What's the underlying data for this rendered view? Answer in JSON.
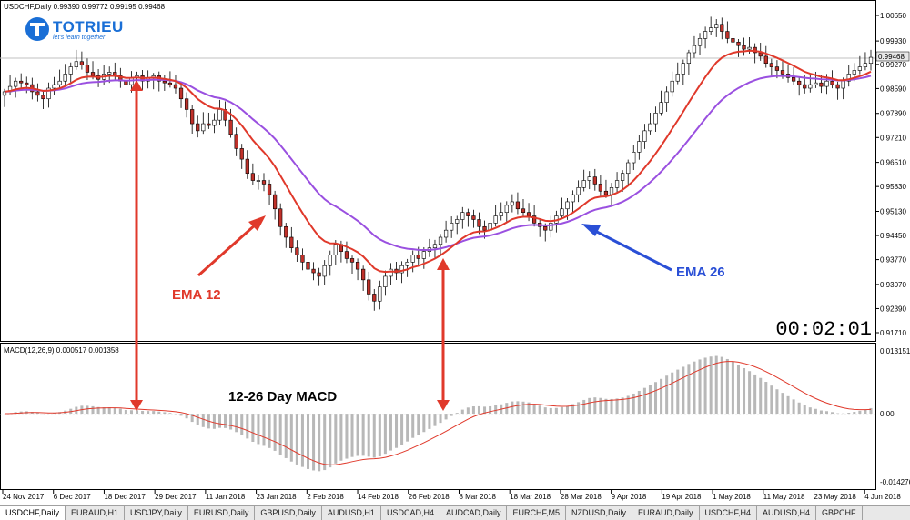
{
  "window": {
    "symbol_header": "USDCHF,Daily  0.99390 0.99772 0.99195 0.99468",
    "macd_header": "MACD(12,26,9) 0.000517 0.001358",
    "timer": "00:02:01"
  },
  "logo": {
    "name": "TOTRIEU",
    "tagline": "let's learn together"
  },
  "annotations": {
    "ema12": "EMA 12",
    "ema26": "EMA 26",
    "macd": "12-26 Day MACD"
  },
  "colors": {
    "ema12": "#e0392b",
    "ema26": "#9a50e0",
    "bull": "#ffffff",
    "bear": "#c0312a",
    "macd_hist": "#b8b8b8",
    "arrow_red": "#e0392b",
    "arrow_blue": "#2a4fd6"
  },
  "tabs": [
    "USDCHF,Daily",
    "EURAUD,H1",
    "USDJPY,Daily",
    "EURUSD,Daily",
    "GBPUSD,Daily",
    "AUDUSD,H1",
    "USDCAD,H4",
    "AUDCAD,Daily",
    "EURCHF,M5",
    "NZDUSD,Daily",
    "EURAUD,Daily",
    "USDCHF,H4",
    "AUDUSD,H4",
    "GBPCHF"
  ],
  "chart_data": {
    "type": "candlestick",
    "symbol": "USDCHF",
    "price_axis": [
      "1.00650",
      "0.99930",
      "0.99270",
      "0.98590",
      "0.97890",
      "0.97210",
      "0.96510",
      "0.95830",
      "0.95130",
      "0.94450",
      "0.93770",
      "0.93070",
      "0.92390",
      "0.91710"
    ],
    "price_range": [
      0.9171,
      1.0065
    ],
    "current_price": "0.99468",
    "macd_axis": [
      "0.013151",
      "0.00",
      "-0.014276"
    ],
    "macd_range": [
      -0.014276,
      0.013151
    ],
    "date_labels": [
      "24 Nov 2017",
      "6 Dec 2017",
      "18 Dec 2017",
      "29 Dec 2017",
      "11 Jan 2018",
      "23 Jan 2018",
      "2 Feb 2018",
      "14 Feb 2018",
      "26 Feb 2018",
      "8 Mar 2018",
      "18 Mar 2018",
      "28 Mar 2018",
      "9 Apr 2018",
      "19 Apr 2018",
      "1 May 2018",
      "11 May 2018",
      "23 May 2018",
      "4 Jun 2018"
    ],
    "close": [
      0.985,
      0.9865,
      0.988,
      0.9875,
      0.987,
      0.985,
      0.984,
      0.983,
      0.986,
      0.987,
      0.988,
      0.99,
      0.992,
      0.9935,
      0.9925,
      0.9905,
      0.9895,
      0.9885,
      0.99,
      0.9905,
      0.9895,
      0.988,
      0.987,
      0.989,
      0.9895,
      0.988,
      0.989,
      0.9895,
      0.988,
      0.9875,
      0.987,
      0.986,
      0.983,
      0.98,
      0.976,
      0.974,
      0.976,
      0.9755,
      0.977,
      0.98,
      0.977,
      0.973,
      0.969,
      0.966,
      0.962,
      0.96,
      0.96,
      0.959,
      0.956,
      0.952,
      0.947,
      0.944,
      0.941,
      0.939,
      0.937,
      0.935,
      0.934,
      0.933,
      0.936,
      0.939,
      0.942,
      0.94,
      0.938,
      0.937,
      0.935,
      0.932,
      0.928,
      0.926,
      0.93,
      0.933,
      0.935,
      0.934,
      0.936,
      0.937,
      0.939,
      0.938,
      0.94,
      0.941,
      0.942,
      0.944,
      0.946,
      0.948,
      0.949,
      0.951,
      0.95,
      0.949,
      0.947,
      0.946,
      0.948,
      0.95,
      0.951,
      0.953,
      0.954,
      0.952,
      0.951,
      0.95,
      0.948,
      0.947,
      0.946,
      0.948,
      0.95,
      0.952,
      0.954,
      0.956,
      0.958,
      0.96,
      0.961,
      0.959,
      0.957,
      0.956,
      0.958,
      0.96,
      0.962,
      0.965,
      0.968,
      0.971,
      0.974,
      0.976,
      0.979,
      0.982,
      0.985,
      0.988,
      0.99,
      0.993,
      0.996,
      0.998,
      1.0,
      1.002,
      1.003,
      1.004,
      1.002,
      1.0,
      0.999,
      0.998,
      0.997,
      0.9975,
      0.996,
      0.995,
      0.993,
      0.992,
      0.991,
      0.99,
      0.989,
      0.988,
      0.987,
      0.986,
      0.987,
      0.9875,
      0.9865,
      0.988,
      0.987,
      0.986,
      0.988,
      0.99,
      0.991,
      0.992,
      0.993,
      0.9947
    ]
  }
}
